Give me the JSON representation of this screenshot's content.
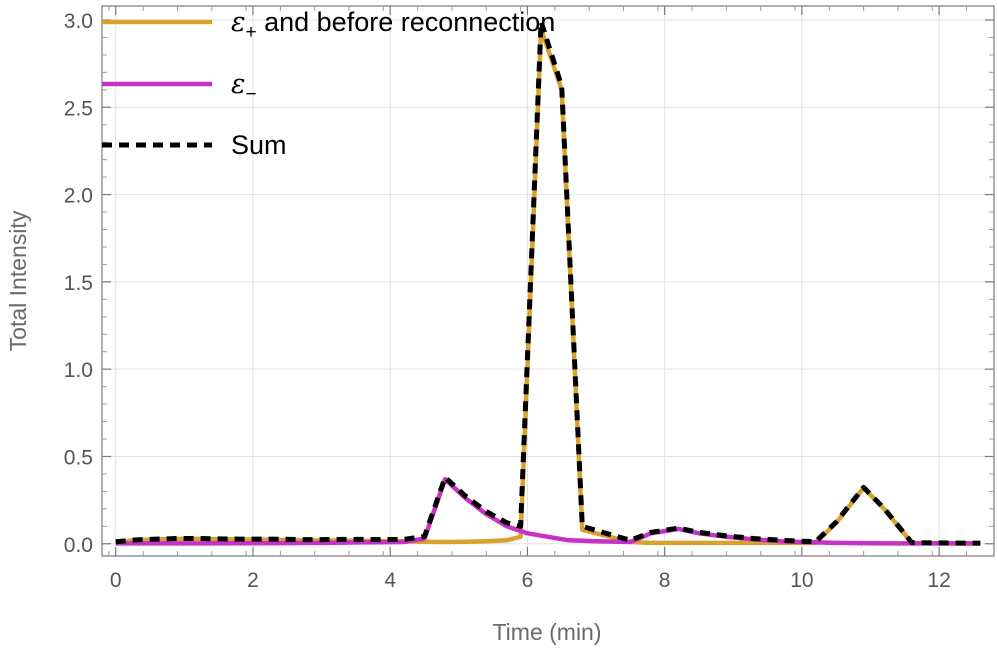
{
  "chart_data": {
    "type": "line",
    "title": "",
    "xlabel": "Time (min)",
    "ylabel": "Total Intensity",
    "xlim": [
      -0.2,
      12.8
    ],
    "ylim": [
      -0.07,
      3.08
    ],
    "xticks": [
      0,
      2,
      4,
      6,
      8,
      10,
      12
    ],
    "xtick_labels": [
      "0",
      "2",
      "4",
      "6",
      "8",
      "10",
      "12"
    ],
    "yticks": [
      0.0,
      0.5,
      1.0,
      1.5,
      2.0,
      2.5,
      3.0
    ],
    "ytick_labels": [
      "0.0",
      "0.5",
      "1.0",
      "1.5",
      "2.0",
      "2.5",
      "3.0"
    ],
    "grid": true,
    "legend_position": "top-left",
    "series": [
      {
        "key": "plus",
        "legend_symbol": "ε",
        "legend_subscript": "+",
        "legend_text": " and before reconnection",
        "color": "#d9a22c",
        "dash": "solid",
        "points": [
          [
            0,
            0.01
          ],
          [
            0.3,
            0.02
          ],
          [
            0.6,
            0.025
          ],
          [
            0.9,
            0.028
          ],
          [
            1.2,
            0.028
          ],
          [
            1.5,
            0.026
          ],
          [
            1.8,
            0.025
          ],
          [
            2.1,
            0.024
          ],
          [
            2.4,
            0.022
          ],
          [
            2.7,
            0.02
          ],
          [
            3.0,
            0.019
          ],
          [
            3.3,
            0.018
          ],
          [
            3.6,
            0.017
          ],
          [
            3.9,
            0.016
          ],
          [
            4.2,
            0.015
          ],
          [
            4.5,
            0.012
          ],
          [
            4.8,
            0.01
          ],
          [
            5.1,
            0.012
          ],
          [
            5.4,
            0.015
          ],
          [
            5.7,
            0.02
          ],
          [
            5.9,
            0.04
          ],
          [
            6.2,
            2.95
          ],
          [
            6.5,
            2.6
          ],
          [
            6.8,
            0.08
          ],
          [
            7.1,
            0.05
          ],
          [
            7.5,
            0.01
          ],
          [
            7.8,
            0.005
          ],
          [
            8.2,
            0.005
          ],
          [
            8.6,
            0.005
          ],
          [
            9.0,
            0.005
          ],
          [
            9.4,
            0.005
          ],
          [
            9.8,
            0.005
          ],
          [
            10.2,
            0.005
          ],
          [
            10.5,
            0.12
          ],
          [
            10.9,
            0.32
          ],
          [
            11.2,
            0.2
          ],
          [
            11.6,
            0.005
          ],
          [
            12.0,
            0.003
          ],
          [
            12.3,
            0.002
          ],
          [
            12.6,
            0.002
          ]
        ]
      },
      {
        "key": "minus",
        "legend_symbol": "ε",
        "legend_subscript": "−",
        "legend_text": "",
        "color": "#c632c6",
        "dash": "solid",
        "points": [
          [
            0,
            0.002
          ],
          [
            0.6,
            0.002
          ],
          [
            1.2,
            0.002
          ],
          [
            1.8,
            0.003
          ],
          [
            2.4,
            0.004
          ],
          [
            3.0,
            0.005
          ],
          [
            3.6,
            0.008
          ],
          [
            4.2,
            0.01
          ],
          [
            4.5,
            0.03
          ],
          [
            4.8,
            0.37
          ],
          [
            5.1,
            0.26
          ],
          [
            5.4,
            0.17
          ],
          [
            5.7,
            0.1
          ],
          [
            6.0,
            0.06
          ],
          [
            6.3,
            0.04
          ],
          [
            6.6,
            0.02
          ],
          [
            7.0,
            0.015
          ],
          [
            7.5,
            0.01
          ],
          [
            7.8,
            0.06
          ],
          [
            8.2,
            0.085
          ],
          [
            8.5,
            0.06
          ],
          [
            8.9,
            0.04
          ],
          [
            9.3,
            0.025
          ],
          [
            9.7,
            0.015
          ],
          [
            10.0,
            0.01
          ],
          [
            10.5,
            0.005
          ],
          [
            11.0,
            0.003
          ],
          [
            11.5,
            0.002
          ],
          [
            12.0,
            0.002
          ],
          [
            12.6,
            0.002
          ]
        ]
      },
      {
        "key": "sum",
        "legend_symbol": "",
        "legend_subscript": "",
        "legend_text": "Sum",
        "color": "#000000",
        "dash": "dashed",
        "points": [
          [
            0,
            0.012
          ],
          [
            0.3,
            0.022
          ],
          [
            0.6,
            0.027
          ],
          [
            0.9,
            0.03
          ],
          [
            1.2,
            0.03
          ],
          [
            1.5,
            0.028
          ],
          [
            1.8,
            0.027
          ],
          [
            2.1,
            0.027
          ],
          [
            2.4,
            0.026
          ],
          [
            2.7,
            0.024
          ],
          [
            3.0,
            0.024
          ],
          [
            3.3,
            0.025
          ],
          [
            3.6,
            0.025
          ],
          [
            3.9,
            0.024
          ],
          [
            4.2,
            0.025
          ],
          [
            4.5,
            0.042
          ],
          [
            4.8,
            0.38
          ],
          [
            5.1,
            0.272
          ],
          [
            5.4,
            0.185
          ],
          [
            5.7,
            0.12
          ],
          [
            5.9,
            0.1
          ],
          [
            6.2,
            2.99
          ],
          [
            6.5,
            2.62
          ],
          [
            6.8,
            0.1
          ],
          [
            7.1,
            0.065
          ],
          [
            7.5,
            0.02
          ],
          [
            7.8,
            0.065
          ],
          [
            8.2,
            0.09
          ],
          [
            8.5,
            0.065
          ],
          [
            8.9,
            0.045
          ],
          [
            9.3,
            0.03
          ],
          [
            9.7,
            0.02
          ],
          [
            10.0,
            0.015
          ],
          [
            10.2,
            0.012
          ],
          [
            10.5,
            0.125
          ],
          [
            10.9,
            0.323
          ],
          [
            11.2,
            0.202
          ],
          [
            11.6,
            0.007
          ],
          [
            12.0,
            0.005
          ],
          [
            12.3,
            0.004
          ],
          [
            12.6,
            0.004
          ]
        ]
      }
    ]
  }
}
